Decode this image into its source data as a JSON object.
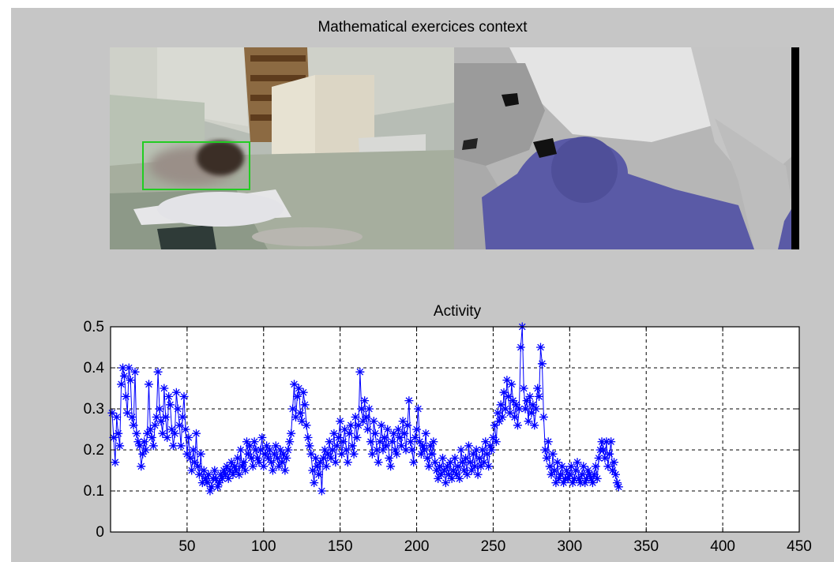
{
  "figure": {
    "title": "Mathematical exercices context"
  },
  "images": {
    "rgb_frame": {
      "icon": "classroom-camera-image",
      "face_box_color": "#22cc22"
    },
    "depth_frame": {
      "icon": "depth-map-image",
      "user_color": "#5a5aa6"
    }
  },
  "colors": {
    "series": "#0000ff",
    "background": "#c6c6c6",
    "plot": "#ffffff"
  },
  "chart_data": {
    "type": "line",
    "title": "Activity",
    "xlabel": "",
    "ylabel": "",
    "xlim": [
      0,
      450
    ],
    "ylim": [
      0,
      0.5
    ],
    "grid": true,
    "marker": "*",
    "xticks": [
      50,
      100,
      150,
      200,
      250,
      300,
      350,
      400,
      450
    ],
    "yticks": [
      0,
      0.1,
      0.2,
      0.3,
      0.4,
      0.5
    ],
    "series": [
      {
        "values": [
          0.29,
          0.23,
          0.17,
          0.28,
          0.24,
          0.21,
          0.36,
          0.4,
          0.38,
          0.33,
          0.29,
          0.4,
          0.37,
          0.28,
          0.26,
          0.39,
          0.24,
          0.22,
          0.21,
          0.16,
          0.19,
          0.22,
          0.2,
          0.24,
          0.36,
          0.25,
          0.23,
          0.21,
          0.26,
          0.28,
          0.39,
          0.3,
          0.27,
          0.24,
          0.35,
          0.28,
          0.23,
          0.33,
          0.31,
          0.25,
          0.21,
          0.24,
          0.34,
          0.3,
          0.26,
          0.21,
          0.28,
          0.33,
          0.25,
          0.19,
          0.23,
          0.18,
          0.15,
          0.2,
          0.17,
          0.24,
          0.16,
          0.14,
          0.19,
          0.12,
          0.15,
          0.13,
          0.12,
          0.14,
          0.1,
          0.11,
          0.13,
          0.15,
          0.13,
          0.11,
          0.12,
          0.14,
          0.13,
          0.15,
          0.14,
          0.16,
          0.13,
          0.15,
          0.17,
          0.14,
          0.16,
          0.15,
          0.18,
          0.14,
          0.2,
          0.16,
          0.17,
          0.15,
          0.22,
          0.19,
          0.21,
          0.18,
          0.16,
          0.22,
          0.2,
          0.18,
          0.17,
          0.2,
          0.23,
          0.16,
          0.19,
          0.21,
          0.18,
          0.2,
          0.17,
          0.15,
          0.19,
          0.21,
          0.18,
          0.16,
          0.2,
          0.17,
          0.19,
          0.15,
          0.18,
          0.2,
          0.22,
          0.24,
          0.3,
          0.36,
          0.28,
          0.33,
          0.35,
          0.29,
          0.27,
          0.34,
          0.31,
          0.26,
          0.23,
          0.21,
          0.19,
          0.15,
          0.12,
          0.18,
          0.16,
          0.14,
          0.17,
          0.1,
          0.18,
          0.2,
          0.16,
          0.19,
          0.22,
          0.18,
          0.2,
          0.24,
          0.17,
          0.21,
          0.23,
          0.27,
          0.19,
          0.22,
          0.25,
          0.2,
          0.17,
          0.24,
          0.26,
          0.21,
          0.19,
          0.28,
          0.23,
          0.26,
          0.39,
          0.3,
          0.27,
          0.32,
          0.28,
          0.25,
          0.3,
          0.22,
          0.19,
          0.27,
          0.24,
          0.2,
          0.17,
          0.22,
          0.26,
          0.2,
          0.23,
          0.21,
          0.25,
          0.18,
          0.16,
          0.22,
          0.24,
          0.2,
          0.19,
          0.25,
          0.23,
          0.21,
          0.27,
          0.24,
          0.2,
          0.26,
          0.32,
          0.22,
          0.2,
          0.17,
          0.23,
          0.25,
          0.3,
          0.22,
          0.19,
          0.21,
          0.2,
          0.24,
          0.18,
          0.16,
          0.21,
          0.19,
          0.22,
          0.17,
          0.15,
          0.13,
          0.16,
          0.14,
          0.18,
          0.15,
          0.12,
          0.16,
          0.14,
          0.17,
          0.13,
          0.15,
          0.18,
          0.14,
          0.16,
          0.13,
          0.2,
          0.17,
          0.15,
          0.18,
          0.14,
          0.21,
          0.17,
          0.15,
          0.19,
          0.16,
          0.2,
          0.14,
          0.18,
          0.16,
          0.2,
          0.17,
          0.22,
          0.19,
          0.16,
          0.21,
          0.2,
          0.23,
          0.26,
          0.22,
          0.29,
          0.27,
          0.31,
          0.28,
          0.34,
          0.3,
          0.37,
          0.33,
          0.29,
          0.36,
          0.32,
          0.28,
          0.31,
          0.26,
          0.3,
          0.45,
          0.5,
          0.35,
          0.3,
          0.32,
          0.27,
          0.33,
          0.29,
          0.31,
          0.26,
          0.3,
          0.35,
          0.33,
          0.45,
          0.41,
          0.28,
          0.2,
          0.18,
          0.22,
          0.16,
          0.14,
          0.19,
          0.15,
          0.12,
          0.17,
          0.13,
          0.14,
          0.16,
          0.12,
          0.13,
          0.15,
          0.13,
          0.14,
          0.16,
          0.12,
          0.13,
          0.15,
          0.17,
          0.13,
          0.12,
          0.14,
          0.16,
          0.12,
          0.13,
          0.15,
          0.14,
          0.13,
          0.12,
          0.14,
          0.16,
          0.13,
          0.18,
          0.2,
          0.22,
          0.2,
          0.18,
          0.22,
          0.16,
          0.19,
          0.22,
          0.15,
          0.17,
          0.14,
          0.12,
          0.11
        ]
      }
    ]
  }
}
